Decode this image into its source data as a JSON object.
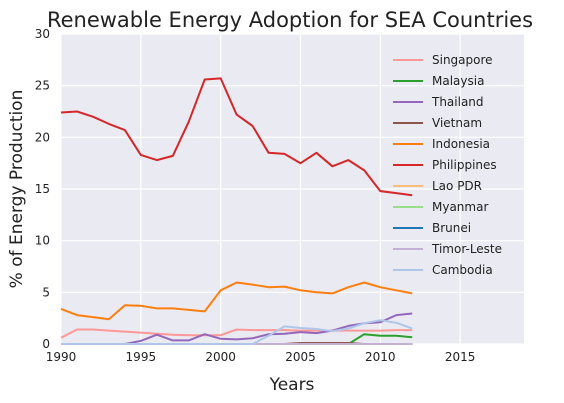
{
  "chart_data": {
    "type": "line",
    "title": "Renewable Energy Adoption for SEA Countries",
    "xlabel": "Years",
    "ylabel": "% of Energy Production",
    "xlim": [
      1990,
      2019
    ],
    "ylim": [
      0,
      30
    ],
    "xticks": [
      1990,
      1995,
      2000,
      2005,
      2010,
      2015
    ],
    "yticks": [
      0,
      5,
      10,
      15,
      20,
      25,
      30
    ],
    "grid": true,
    "legend_position": "upper-right",
    "series": [
      {
        "name": "Singapore",
        "color": "#ff9896",
        "x": [
          1990,
          1991,
          1992,
          1993,
          1994,
          1995,
          1996,
          1997,
          1998,
          1999,
          2000,
          2001,
          2002,
          2003,
          2004,
          2005,
          2006,
          2007,
          2008,
          2009,
          2010,
          2011,
          2012
        ],
        "y": [
          0.6,
          1.4,
          1.4,
          1.3,
          1.2,
          1.1,
          1.0,
          0.9,
          0.85,
          0.85,
          0.85,
          1.4,
          1.35,
          1.35,
          1.35,
          1.3,
          1.3,
          1.3,
          1.3,
          1.3,
          1.3,
          1.35,
          1.35
        ]
      },
      {
        "name": "Malaysia",
        "color": "#2ca02c",
        "x": [
          1990,
          1991,
          1992,
          1993,
          1994,
          1995,
          1996,
          1997,
          1998,
          1999,
          2000,
          2001,
          2002,
          2003,
          2004,
          2005,
          2006,
          2007,
          2008,
          2009,
          2010,
          2011,
          2012
        ],
        "y": [
          0,
          0,
          0,
          0,
          0,
          0,
          0,
          0,
          0,
          0,
          0,
          0,
          0,
          0,
          0,
          0,
          0,
          0,
          0,
          0.95,
          0.8,
          0.8,
          0.65
        ]
      },
      {
        "name": "Thailand",
        "color": "#9467bd",
        "x": [
          1990,
          1991,
          1992,
          1993,
          1994,
          1995,
          1996,
          1997,
          1998,
          1999,
          2000,
          2001,
          2002,
          2003,
          2004,
          2005,
          2006,
          2007,
          2008,
          2009,
          2010,
          2011,
          2012
        ],
        "y": [
          0,
          0,
          0,
          0,
          0,
          0.3,
          0.9,
          0.35,
          0.35,
          0.95,
          0.5,
          0.45,
          0.55,
          0.95,
          1.0,
          1.15,
          1.05,
          1.3,
          1.75,
          2.0,
          2.1,
          2.8,
          2.95
        ]
      },
      {
        "name": "Vietnam",
        "color": "#8c564b",
        "x": [
          1990,
          1991,
          1992,
          1993,
          1994,
          1995,
          1996,
          1997,
          1998,
          1999,
          2000,
          2001,
          2002,
          2003,
          2004,
          2005,
          2006,
          2007,
          2008,
          2009,
          2010,
          2011,
          2012
        ],
        "y": [
          0,
          0,
          0,
          0,
          0,
          0,
          0,
          0,
          0,
          0,
          0,
          0,
          0,
          0,
          0,
          0.1,
          0.1,
          0.1,
          0.1,
          0,
          0,
          0,
          0
        ]
      },
      {
        "name": "Indonesia",
        "color": "#ff7f0e",
        "x": [
          1990,
          1991,
          1992,
          1993,
          1994,
          1995,
          1996,
          1997,
          1998,
          1999,
          2000,
          2001,
          2002,
          2003,
          2004,
          2005,
          2006,
          2007,
          2008,
          2009,
          2010,
          2011,
          2012
        ],
        "y": [
          3.4,
          2.8,
          2.6,
          2.4,
          3.75,
          3.7,
          3.45,
          3.45,
          3.3,
          3.15,
          5.2,
          5.95,
          5.75,
          5.5,
          5.55,
          5.2,
          5.0,
          4.9,
          5.5,
          5.95,
          5.5,
          5.2,
          4.9
        ]
      },
      {
        "name": "Philippines",
        "color": "#d62728",
        "x": [
          1990,
          1991,
          1992,
          1993,
          1994,
          1995,
          1996,
          1997,
          1998,
          1999,
          2000,
          2001,
          2002,
          2003,
          2004,
          2005,
          2006,
          2007,
          2008,
          2009,
          2010,
          2011,
          2012
        ],
        "y": [
          22.4,
          22.5,
          22.0,
          21.3,
          20.7,
          18.3,
          17.8,
          18.2,
          21.5,
          25.6,
          25.7,
          22.2,
          21.1,
          18.5,
          18.4,
          17.5,
          18.5,
          17.2,
          17.8,
          16.8,
          14.8,
          14.6,
          14.4
        ]
      },
      {
        "name": "Lao PDR",
        "color": "#ffbb78",
        "x": [
          1990,
          2012
        ],
        "y": [
          0,
          0
        ]
      },
      {
        "name": "Myanmar",
        "color": "#98df8a",
        "x": [
          1990,
          2012
        ],
        "y": [
          0,
          0
        ]
      },
      {
        "name": "Brunei",
        "color": "#1f77b4",
        "x": [
          1990,
          2012
        ],
        "y": [
          0,
          0
        ]
      },
      {
        "name": "Timor-Leste",
        "color": "#c5b0d5",
        "x": [
          1990,
          2012
        ],
        "y": [
          0,
          0
        ]
      },
      {
        "name": "Cambodia",
        "color": "#aec7e8",
        "x": [
          1990,
          1991,
          1992,
          1993,
          1994,
          1995,
          1996,
          1997,
          1998,
          1999,
          2000,
          2001,
          2002,
          2003,
          2004,
          2005,
          2006,
          2007,
          2008,
          2009,
          2010,
          2011,
          2012
        ],
        "y": [
          0,
          0,
          0,
          0,
          0,
          0,
          0,
          0,
          0,
          0,
          0,
          0,
          0,
          0.8,
          1.7,
          1.55,
          1.45,
          1.25,
          1.5,
          2.0,
          2.3,
          2.05,
          1.5
        ]
      }
    ]
  }
}
